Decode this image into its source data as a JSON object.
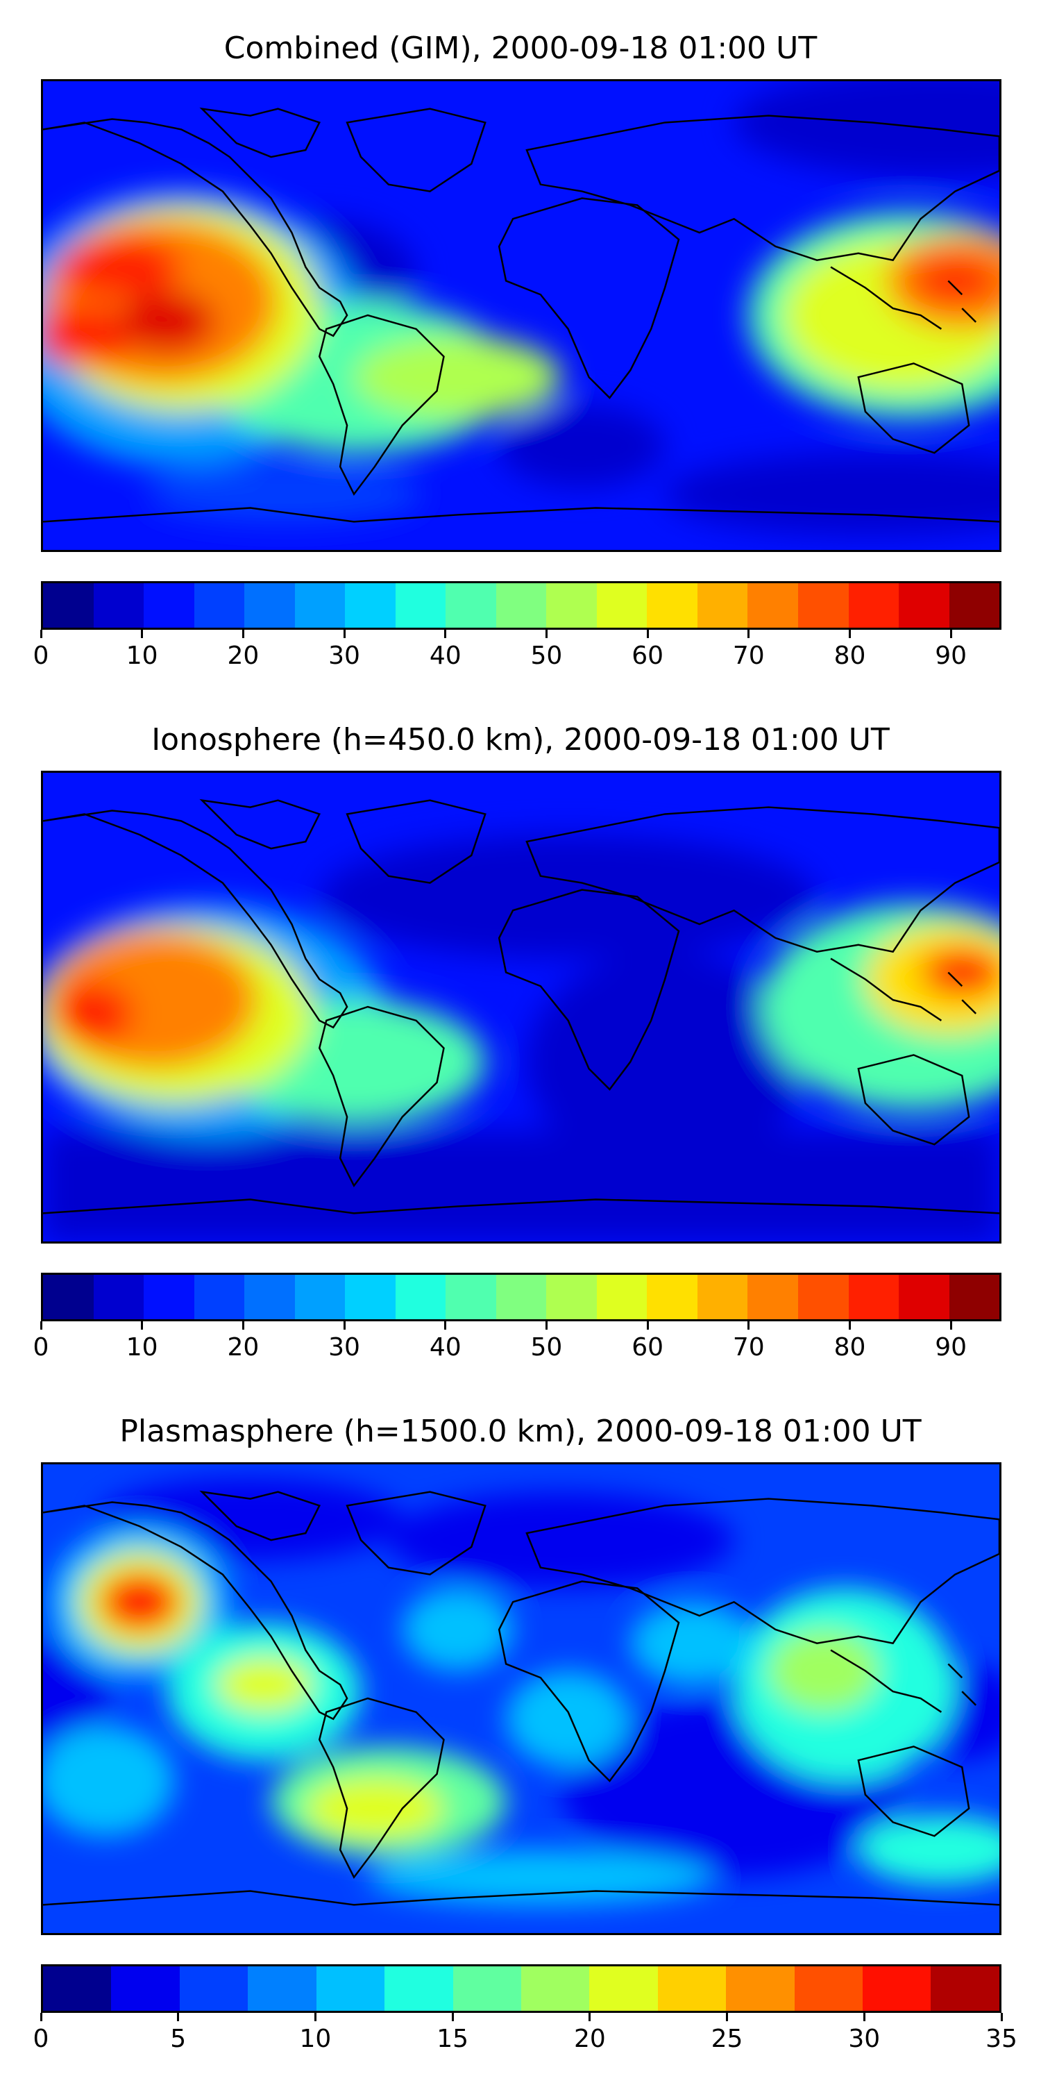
{
  "panels": [
    {
      "title": "Combined (GIM), 2000-09-18 01:00 UT",
      "colorbar": {
        "min": 0,
        "max": 95,
        "step": 5,
        "ticks": [
          "0",
          "10",
          "20",
          "30",
          "40",
          "50",
          "60",
          "70",
          "80",
          "90"
        ],
        "tick_values": [
          0,
          10,
          20,
          30,
          40,
          50,
          60,
          70,
          80,
          90
        ]
      }
    },
    {
      "title": "Ionosphere  (h=450.0 km), 2000-09-18 01:00 UT",
      "colorbar": {
        "min": 0,
        "max": 95,
        "step": 5,
        "ticks": [
          "0",
          "10",
          "20",
          "30",
          "40",
          "50",
          "60",
          "70",
          "80",
          "90"
        ],
        "tick_values": [
          0,
          10,
          20,
          30,
          40,
          50,
          60,
          70,
          80,
          90
        ]
      }
    },
    {
      "title": "Plasmasphere (h=1500.0 km), 2000-09-18 01:00 UT",
      "colorbar": {
        "min": 0,
        "max": 35,
        "step": 2.5,
        "ticks": [
          "0",
          "5",
          "10",
          "15",
          "20",
          "25",
          "30",
          "35"
        ],
        "tick_values": [
          0,
          5,
          10,
          15,
          20,
          25,
          30,
          35
        ]
      }
    }
  ],
  "colormap": "jet",
  "colors": {
    "jet19": [
      "#00008f",
      "#0000cf",
      "#0010ff",
      "#0040ff",
      "#0070ff",
      "#00a0ff",
      "#00d0ff",
      "#20ffdf",
      "#50ffaf",
      "#80ff80",
      "#afff50",
      "#dfff20",
      "#ffe000",
      "#ffb000",
      "#ff8000",
      "#ff5000",
      "#ff2000",
      "#df0000",
      "#8f0000"
    ],
    "jet14": [
      "#00008f",
      "#0000ef",
      "#0040ff",
      "#0080ff",
      "#00c0ff",
      "#20ffe0",
      "#60ffa0",
      "#a0ff60",
      "#e0ff20",
      "#ffd000",
      "#ff9000",
      "#ff5000",
      "#ff1000",
      "#b00000"
    ]
  }
}
